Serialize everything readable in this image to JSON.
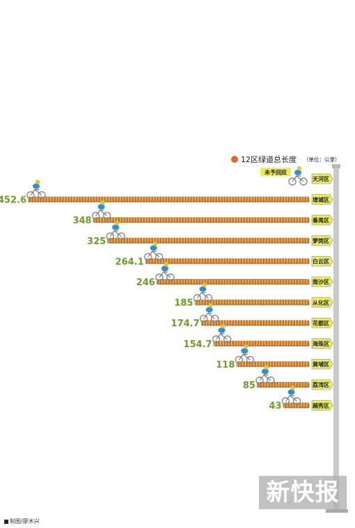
{
  "chart_data": {
    "type": "bar",
    "orientation": "horizontal",
    "title": "12区绿道总长度",
    "unit_note": "（单位：公里）",
    "categories": [
      "天河区",
      "增城区",
      "番禺区",
      "萝岗区",
      "白云区",
      "南沙区",
      "从化区",
      "花都区",
      "海珠区",
      "黄埔区",
      "荔湾区",
      "越秀区"
    ],
    "values": [
      null,
      452.6,
      348,
      325,
      264.1,
      246,
      185,
      174.7,
      154.7,
      118,
      85,
      43
    ],
    "value_labels": [
      "",
      "452.6",
      "348",
      "325",
      "264.1",
      "246",
      "185",
      "174.7",
      "154.7",
      "118",
      "85",
      "43"
    ],
    "no_reply_label": "未予回应",
    "colors": {
      "bar": "#e0662f",
      "bar_stripe": "#cfe07a",
      "sign": "#ecec5c",
      "value_text": "#6d9a2a",
      "dot": "#e0662f",
      "pole": "#c8cac9"
    }
  },
  "footer": {
    "credit": "制图/廖木兴"
  },
  "logo": {
    "text": "新快报"
  }
}
